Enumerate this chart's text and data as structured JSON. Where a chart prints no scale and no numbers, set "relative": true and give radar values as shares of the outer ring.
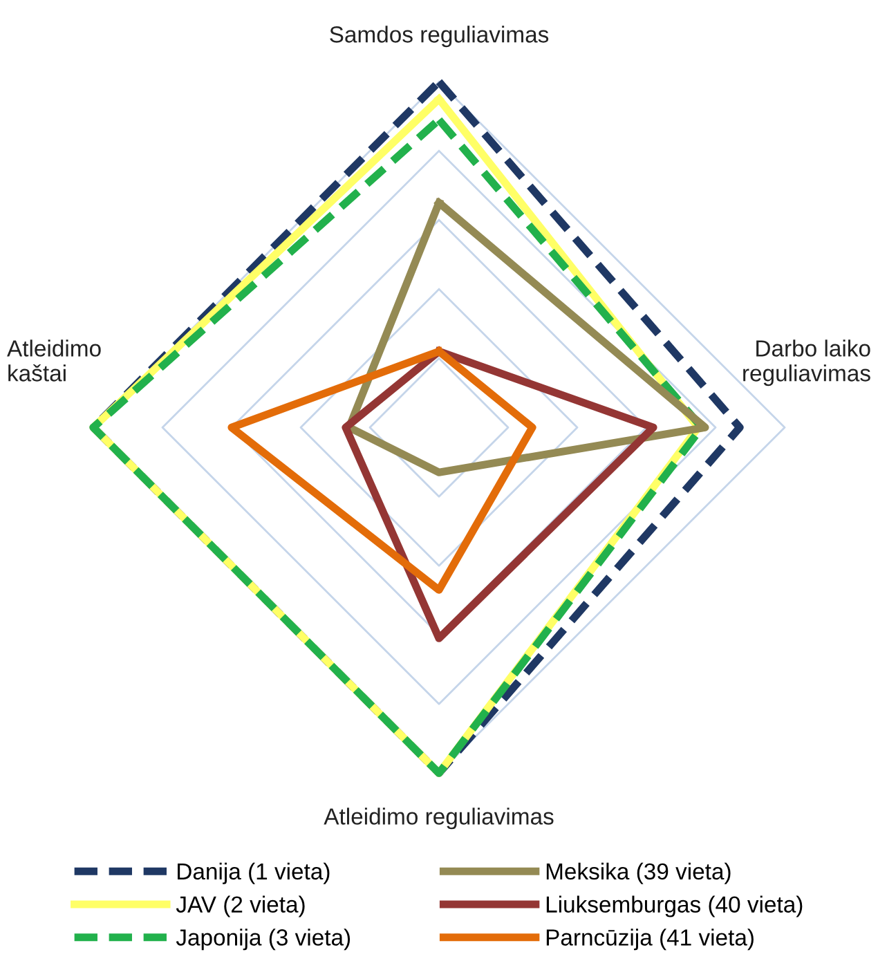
{
  "chart_data": {
    "type": "radar",
    "relative": true,
    "grid": true,
    "legend": "bottom",
    "categories": [
      "Samdos reguliavimas",
      "Darbo laiko\nreguliavimas",
      "Atleidimo reguliavimas",
      "Atleidimo\nkaštai"
    ],
    "series": [
      {
        "name": "Danija (1 vieta)",
        "color": "#1f3864",
        "line_style": "dashed",
        "values": [
          1.0,
          0.87,
          1.0,
          1.0
        ]
      },
      {
        "name": "JAV (2 vieta)",
        "color": "#ffff66",
        "line_style": "solid",
        "values": [
          0.95,
          0.75,
          1.0,
          1.0
        ]
      },
      {
        "name": "Japonija (3 vieta)",
        "color": "#22b14c",
        "line_style": "dashed",
        "values": [
          0.89,
          0.76,
          1.0,
          1.0
        ]
      },
      {
        "name": "Meksika (39 vieta)",
        "color": "#948a54",
        "line_style": "solid",
        "values": [
          0.65,
          0.77,
          0.13,
          0.26
        ]
      },
      {
        "name": "Liuksemburgas (40 vieta)",
        "color": "#943634",
        "line_style": "solid",
        "values": [
          0.22,
          0.62,
          0.61,
          0.27
        ]
      },
      {
        "name": "Parncūzija (41 vieta)",
        "color": "#e36c09",
        "line_style": "solid",
        "values": [
          0.22,
          0.27,
          0.47,
          0.6
        ]
      }
    ]
  }
}
